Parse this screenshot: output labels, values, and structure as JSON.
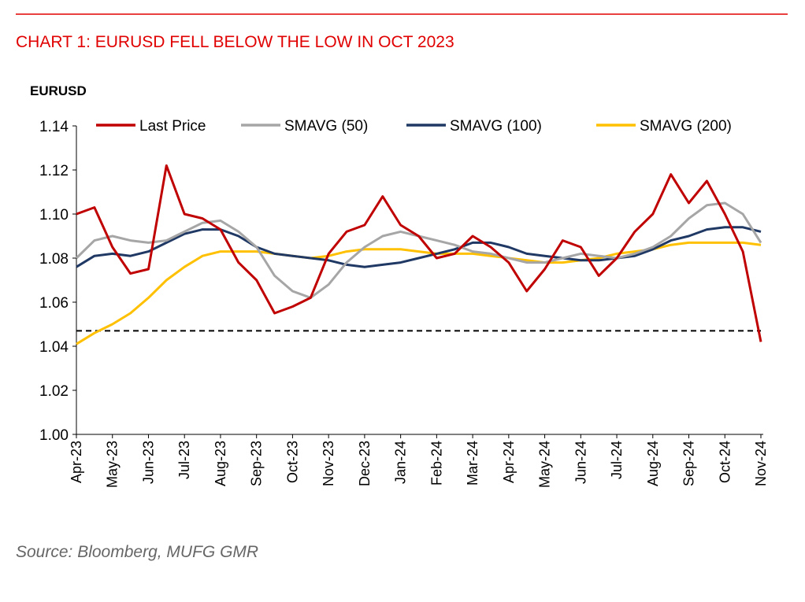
{
  "chart_data": {
    "type": "line",
    "title": "CHART 1: EURUSD FELL BELOW THE LOW IN OCT 2023",
    "y_axis_label": "EURUSD",
    "source": "Source: Bloomberg, MUFG GMR",
    "categories": [
      "Apr-23",
      null,
      "May-23",
      null,
      "Jun-23",
      null,
      "Jul-23",
      null,
      "Aug-23",
      null,
      "Sep-23",
      null,
      "Oct-23",
      null,
      "Nov-23",
      null,
      "Dec-23",
      null,
      "Jan-24",
      null,
      "Feb-24",
      null,
      "Mar-24",
      null,
      "Apr-24",
      null,
      "May-24",
      null,
      "Jun-24",
      null,
      "Jul-24",
      null,
      "Aug-24",
      null,
      "Sep-24",
      null,
      "Oct-24",
      null,
      "Nov-24"
    ],
    "series": [
      {
        "name": "Last Price",
        "color": "#c00000",
        "values": [
          1.1,
          1.103,
          1.085,
          1.073,
          1.075,
          1.122,
          1.1,
          1.098,
          1.093,
          1.078,
          1.07,
          1.055,
          1.058,
          1.062,
          1.082,
          1.092,
          1.095,
          1.108,
          1.095,
          1.09,
          1.08,
          1.082,
          1.09,
          1.085,
          1.078,
          1.065,
          1.075,
          1.088,
          1.085,
          1.072,
          1.08,
          1.092,
          1.1,
          1.118,
          1.105,
          1.115,
          1.1,
          1.083,
          1.042
        ]
      },
      {
        "name": "SMAVG (50)",
        "color": "#a6a6a6",
        "values": [
          1.08,
          1.088,
          1.09,
          1.088,
          1.087,
          1.088,
          1.092,
          1.096,
          1.097,
          1.092,
          1.085,
          1.072,
          1.065,
          1.062,
          1.068,
          1.078,
          1.085,
          1.09,
          1.092,
          1.09,
          1.088,
          1.086,
          1.083,
          1.082,
          1.08,
          1.078,
          1.078,
          1.08,
          1.082,
          1.081,
          1.08,
          1.082,
          1.085,
          1.09,
          1.098,
          1.104,
          1.105,
          1.1,
          1.087
        ]
      },
      {
        "name": "SMAVG (100)",
        "color": "#1f3864",
        "values": [
          1.076,
          1.081,
          1.082,
          1.081,
          1.083,
          1.087,
          1.091,
          1.093,
          1.093,
          1.09,
          1.085,
          1.082,
          1.081,
          1.08,
          1.079,
          1.077,
          1.076,
          1.077,
          1.078,
          1.08,
          1.082,
          1.084,
          1.087,
          1.087,
          1.085,
          1.082,
          1.081,
          1.08,
          1.079,
          1.079,
          1.08,
          1.081,
          1.084,
          1.088,
          1.09,
          1.093,
          1.094,
          1.094,
          1.092
        ]
      },
      {
        "name": "SMAVG (200)",
        "color": "#ffc000",
        "values": [
          1.041,
          1.046,
          1.05,
          1.055,
          1.062,
          1.07,
          1.076,
          1.081,
          1.083,
          1.083,
          1.083,
          1.082,
          1.081,
          1.08,
          1.081,
          1.083,
          1.084,
          1.084,
          1.084,
          1.083,
          1.082,
          1.082,
          1.082,
          1.081,
          1.08,
          1.079,
          1.078,
          1.078,
          1.079,
          1.08,
          1.082,
          1.083,
          1.084,
          1.086,
          1.087,
          1.087,
          1.087,
          1.087,
          1.086
        ]
      }
    ],
    "reference_line": 1.047,
    "ylim": [
      1.0,
      1.14
    ],
    "yticks": [
      {
        "value": 1.0,
        "label": "1.00"
      },
      {
        "value": 1.02,
        "label": "1.02"
      },
      {
        "value": 1.04,
        "label": "1.04"
      },
      {
        "value": 1.06,
        "label": "1.06"
      },
      {
        "value": 1.08,
        "label": "1.08"
      },
      {
        "value": 1.1,
        "label": "1.10"
      },
      {
        "value": 1.12,
        "label": "1.12"
      },
      {
        "value": 1.14,
        "label": "1.14"
      }
    ],
    "grid": false,
    "legend": "top"
  }
}
